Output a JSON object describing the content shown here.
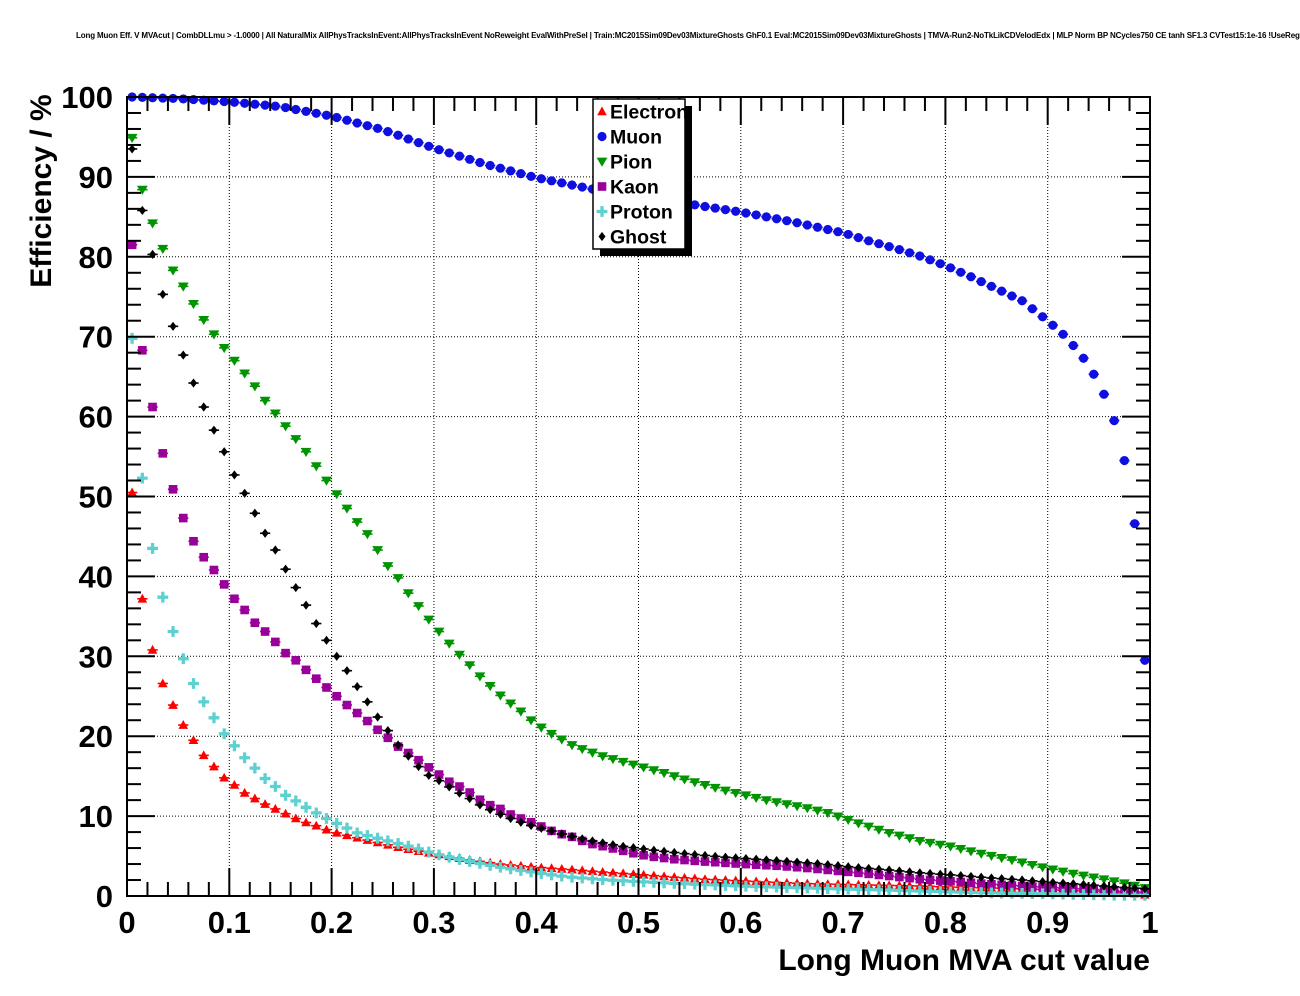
{
  "chart_data": {
    "type": "scatter",
    "title": "Long Muon Eff. V MVAcut | CombDLLmu > -1.0000 | All NaturalMix AllPhysTracksInEvent:AllPhysTracksInEvent NoReweight EvalWithPreSel | Train:MC2015Sim09Dev03MixtureGhosts GhF0.1 Eval:MC2015Sim09Dev03MixtureGhosts | TMVA-Run2-NoTkLikCDVelodEdx | MLP Norm BP NCycles750 CE tanh SF1.3 CVTest15:1e-16 !UseReg",
    "xlabel": "Long Muon MVA cut value",
    "ylabel": "Efficiency / %",
    "xlim": [
      0,
      1
    ],
    "ylim": [
      0,
      100
    ],
    "grid": true,
    "axis_color": "#000000",
    "x_ticks": {
      "values": [
        0,
        0.1,
        0.2,
        0.3,
        0.4,
        0.5,
        0.6,
        0.7,
        0.8,
        0.9,
        1
      ],
      "labels": [
        "0",
        "0.1",
        "0.2",
        "0.3",
        "0.4",
        "0.5",
        "0.6",
        "0.7",
        "0.8",
        "0.9",
        "1"
      ]
    },
    "y_ticks": {
      "values": [
        0,
        10,
        20,
        30,
        40,
        50,
        60,
        70,
        80,
        90,
        100
      ],
      "labels": [
        "0",
        "10",
        "20",
        "30",
        "40",
        "50",
        "60",
        "70",
        "80",
        "90",
        "100"
      ]
    },
    "x_minor_step": 0.02,
    "y_minor_step": 2,
    "marker_x_start": 0.005,
    "marker_x_step": 0.01,
    "x_error_halfwidth": 0.005,
    "legend_position": "top-center",
    "series": [
      {
        "name": "Electron",
        "marker": "triangle-up",
        "color": "#fe0000",
        "anchors": {
          "x": [
            0.005,
            0.015,
            0.025,
            0.035,
            0.045,
            0.055,
            0.065,
            0.075,
            0.085,
            0.095,
            0.105,
            0.115,
            0.125,
            0.135,
            0.145,
            0.155,
            0.165,
            0.175,
            0.185,
            0.195,
            0.205,
            0.225,
            0.245,
            0.265,
            0.285,
            0.305,
            0.335,
            0.365,
            0.4,
            0.435,
            0.465,
            0.5,
            0.53,
            0.565,
            0.6,
            0.635,
            0.665,
            0.7,
            0.735,
            0.775,
            0.81,
            0.845,
            0.875,
            0.91,
            0.94,
            0.965,
            0.985,
            0.995
          ],
          "y": [
            50.5,
            37.2,
            30.8,
            26.6,
            23.9,
            21.4,
            19.5,
            17.6,
            16.2,
            14.8,
            13.9,
            12.9,
            12.2,
            11.5,
            10.9,
            10.3,
            9.7,
            9.2,
            8.8,
            8.3,
            7.9,
            7.3,
            6.7,
            6.1,
            5.6,
            5.2,
            4.5,
            4.0,
            3.6,
            3.3,
            3.0,
            2.7,
            2.4,
            2.1,
            1.9,
            1.7,
            1.55,
            1.45,
            1.35,
            1.25,
            1.1,
            1.0,
            0.9,
            0.75,
            0.6,
            0.45,
            0.3,
            0.15
          ]
        }
      },
      {
        "name": "Muon",
        "marker": "circle",
        "color": "#0f0fe0",
        "anchors": {
          "x": [
            0.005,
            0.05,
            0.1,
            0.15,
            0.2,
            0.25,
            0.3,
            0.35,
            0.4,
            0.45,
            0.5,
            0.55,
            0.6,
            0.65,
            0.7,
            0.725,
            0.75,
            0.775,
            0.8,
            0.825,
            0.85,
            0.875,
            0.9,
            0.915,
            0.925,
            0.935,
            0.945,
            0.955,
            0.965,
            0.975,
            0.985,
            0.995
          ],
          "y": [
            100,
            99.8,
            99.4,
            98.8,
            97.6,
            95.9,
            93.6,
            91.6,
            89.9,
            88.6,
            87.5,
            86.6,
            85.6,
            84.4,
            83.0,
            82.0,
            81.1,
            80.1,
            78.9,
            77.5,
            76.0,
            74.5,
            72.0,
            70.3,
            68.9,
            67.3,
            65.3,
            62.8,
            59.5,
            54.5,
            46.6,
            29.5
          ]
        }
      },
      {
        "name": "Pion",
        "marker": "triangle-down",
        "color": "#009400",
        "anchors": {
          "x": [
            0.005,
            0.015,
            0.025,
            0.035,
            0.045,
            0.055,
            0.065,
            0.075,
            0.085,
            0.095,
            0.105,
            0.115,
            0.125,
            0.135,
            0.145,
            0.155,
            0.165,
            0.175,
            0.185,
            0.195,
            0.205,
            0.215,
            0.225,
            0.235,
            0.245,
            0.255,
            0.265,
            0.275,
            0.285,
            0.295,
            0.305,
            0.315,
            0.325,
            0.335,
            0.345,
            0.355,
            0.365,
            0.375,
            0.385,
            0.395,
            0.405,
            0.415,
            0.425,
            0.435,
            0.445,
            0.465,
            0.485,
            0.505,
            0.525,
            0.545,
            0.565,
            0.585,
            0.605,
            0.625,
            0.645,
            0.665,
            0.685,
            0.715,
            0.745,
            0.775,
            0.805,
            0.835,
            0.865,
            0.895,
            0.925,
            0.955,
            0.975,
            0.995
          ],
          "y": [
            94.9,
            88.4,
            84.2,
            81.0,
            78.3,
            76.3,
            74.1,
            72.1,
            70.3,
            68.6,
            67.0,
            65.4,
            63.8,
            62.0,
            60.4,
            58.8,
            57.2,
            55.6,
            53.8,
            52.0,
            50.3,
            48.5,
            46.8,
            45.3,
            43.3,
            41.3,
            39.8,
            37.9,
            36.3,
            34.6,
            33.1,
            31.6,
            30.2,
            28.9,
            27.5,
            26.3,
            25.1,
            24.1,
            23.1,
            22.0,
            21.1,
            20.3,
            19.6,
            18.9,
            18.4,
            17.5,
            16.8,
            16.1,
            15.4,
            14.6,
            13.9,
            13.2,
            12.6,
            12.0,
            11.5,
            11.0,
            10.4,
            9.1,
            7.9,
            6.9,
            6.2,
            5.3,
            4.5,
            3.6,
            2.8,
            2.1,
            1.6,
            1.0
          ]
        }
      },
      {
        "name": "Kaon",
        "marker": "square",
        "color": "#990099",
        "anchors": {
          "x": [
            0.005,
            0.015,
            0.025,
            0.035,
            0.045,
            0.055,
            0.065,
            0.075,
            0.085,
            0.095,
            0.105,
            0.115,
            0.125,
            0.135,
            0.145,
            0.155,
            0.165,
            0.175,
            0.185,
            0.195,
            0.205,
            0.215,
            0.225,
            0.235,
            0.245,
            0.255,
            0.265,
            0.275,
            0.285,
            0.295,
            0.305,
            0.315,
            0.33,
            0.34,
            0.35,
            0.365,
            0.375,
            0.385,
            0.4,
            0.41,
            0.42,
            0.435,
            0.445,
            0.455,
            0.47,
            0.48,
            0.49,
            0.5,
            0.515,
            0.535,
            0.56,
            0.585,
            0.61,
            0.64,
            0.665,
            0.69,
            0.715,
            0.745,
            0.775,
            0.81,
            0.84,
            0.875,
            0.905,
            0.94,
            0.97,
            0.995
          ],
          "y": [
            81.5,
            68.3,
            61.2,
            55.4,
            50.9,
            47.3,
            44.4,
            42.4,
            40.8,
            39.0,
            37.2,
            35.8,
            34.2,
            33.1,
            31.8,
            30.4,
            29.5,
            28.3,
            27.2,
            26.1,
            25.0,
            23.9,
            22.9,
            21.9,
            20.8,
            19.8,
            18.7,
            17.9,
            17.0,
            16.1,
            15.2,
            14.3,
            13.4,
            12.5,
            11.6,
            10.9,
            10.2,
            9.7,
            9.0,
            8.4,
            7.9,
            7.4,
            6.9,
            6.5,
            6.1,
            5.8,
            5.5,
            5.2,
            4.9,
            4.6,
            4.35,
            4.15,
            3.95,
            3.75,
            3.5,
            3.2,
            2.9,
            2.5,
            2.1,
            1.8,
            1.5,
            1.25,
            1.05,
            0.85,
            0.6,
            0.45
          ]
        }
      },
      {
        "name": "Proton",
        "marker": "plus",
        "color": "#5fd0d0",
        "anchors": {
          "x": [
            0.005,
            0.015,
            0.025,
            0.035,
            0.045,
            0.055,
            0.065,
            0.075,
            0.085,
            0.095,
            0.105,
            0.115,
            0.125,
            0.135,
            0.145,
            0.155,
            0.165,
            0.175,
            0.185,
            0.195,
            0.205,
            0.215,
            0.225,
            0.24,
            0.255,
            0.27,
            0.285,
            0.3,
            0.32,
            0.34,
            0.365,
            0.4,
            0.43,
            0.47,
            0.5,
            0.55,
            0.6,
            0.65,
            0.68,
            0.71,
            0.745,
            0.775,
            0.81,
            0.84,
            0.875,
            0.91,
            0.94,
            0.975,
            0.995
          ],
          "y": [
            69.8,
            52.3,
            43.5,
            37.4,
            33.1,
            29.7,
            26.6,
            24.3,
            22.3,
            20.3,
            18.8,
            17.3,
            16.0,
            14.7,
            13.7,
            12.6,
            11.9,
            11.1,
            10.4,
            9.7,
            9.1,
            8.5,
            7.9,
            7.4,
            6.9,
            6.4,
            5.9,
            5.3,
            4.7,
            4.2,
            3.6,
            2.9,
            2.4,
            2.0,
            1.8,
            1.5,
            1.25,
            1.05,
            0.95,
            0.85,
            0.74,
            0.62,
            0.5,
            0.4,
            0.33,
            0.25,
            0.17,
            0.1,
            0.08
          ]
        }
      },
      {
        "name": "Ghost",
        "marker": "diamond",
        "color": "#000000",
        "anchors": {
          "x": [
            0.005,
            0.015,
            0.025,
            0.035,
            0.045,
            0.055,
            0.065,
            0.075,
            0.085,
            0.095,
            0.105,
            0.115,
            0.125,
            0.135,
            0.145,
            0.155,
            0.165,
            0.175,
            0.185,
            0.195,
            0.205,
            0.215,
            0.225,
            0.235,
            0.245,
            0.255,
            0.265,
            0.275,
            0.285,
            0.295,
            0.31,
            0.32,
            0.335,
            0.345,
            0.36,
            0.375,
            0.39,
            0.41,
            0.43,
            0.45,
            0.48,
            0.51,
            0.545,
            0.58,
            0.615,
            0.65,
            0.68,
            0.71,
            0.745,
            0.775,
            0.81,
            0.84,
            0.875,
            0.905,
            0.94,
            0.97,
            0.995
          ],
          "y": [
            93.5,
            85.8,
            80.3,
            75.3,
            71.3,
            67.7,
            64.2,
            61.2,
            58.3,
            55.6,
            52.7,
            50.4,
            47.9,
            45.4,
            43.3,
            40.9,
            38.6,
            36.4,
            34.1,
            32.0,
            30.0,
            28.2,
            26.2,
            24.3,
            22.4,
            20.7,
            18.9,
            17.5,
            16.2,
            15.1,
            14.1,
            13.2,
            12.2,
            11.4,
            10.5,
            9.7,
            9.0,
            8.3,
            7.6,
            7.0,
            6.3,
            5.8,
            5.3,
            4.9,
            4.6,
            4.3,
            4.0,
            3.6,
            3.25,
            2.9,
            2.6,
            2.3,
            2.0,
            1.7,
            1.4,
            1.1,
            0.9
          ]
        }
      }
    ]
  }
}
